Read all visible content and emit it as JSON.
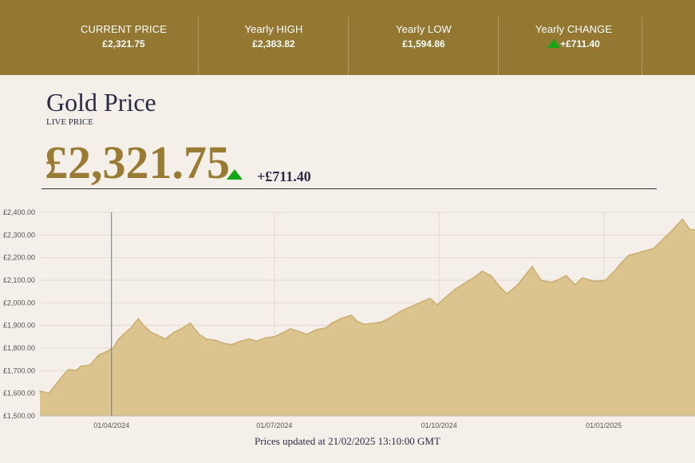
{
  "header": {
    "stats": [
      {
        "label": "CURRENT PRICE",
        "value": "£2,321.75"
      },
      {
        "label": "Yearly HIGH",
        "value": "£2,383.82"
      },
      {
        "label": "Yearly LOW",
        "value": "£1,594.86"
      },
      {
        "label": "Yearly CHANGE",
        "value": "+£711.40"
      }
    ]
  },
  "main": {
    "title": "Gold Price",
    "subtitle": "LIVE PRICE",
    "price": "£2,321.75",
    "change": "+£711.40",
    "updated": "Prices updated at 21/02/2025 13:10:00 GMT"
  },
  "colors": {
    "header_bg": "#947731",
    "price": "#9a7b33",
    "area_fill": "#dcc48f",
    "area_stroke": "#c9ad6e",
    "up": "#12a812"
  },
  "chart_data": {
    "type": "area",
    "title": "",
    "xlabel": "",
    "ylabel": "",
    "ylim": [
      1500,
      2400
    ],
    "yticks": [
      1500,
      1600,
      1700,
      1800,
      1900,
      2000,
      2100,
      2200,
      2300,
      2400
    ],
    "ytick_labels": [
      "£1,500.00",
      "£1,600.00",
      "£1,700.00",
      "£1,800.00",
      "£1,900.00",
      "£2,000.00",
      "£2,100.00",
      "£2,200.00",
      "£2,300.00",
      "£2,400.00"
    ],
    "xlim": [
      "2024-02-21",
      "2025-02-21"
    ],
    "xticks": [
      "2024-04-01",
      "2024-07-01",
      "2024-10-01",
      "2025-01-01"
    ],
    "xtick_labels": [
      "01/04/2024",
      "01/07/2024",
      "01/10/2024",
      "01/01/2025"
    ],
    "grid": true,
    "series": [
      {
        "x": [
          "2024-02-21",
          "2024-02-26",
          "2024-03-01",
          "2024-03-05",
          "2024-03-08",
          "2024-03-12",
          "2024-03-15",
          "2024-03-20",
          "2024-03-25",
          "2024-03-28",
          "2024-04-02",
          "2024-04-05",
          "2024-04-09",
          "2024-04-12",
          "2024-04-16",
          "2024-04-19",
          "2024-04-23",
          "2024-04-26",
          "2024-05-01",
          "2024-05-06",
          "2024-05-10",
          "2024-05-15",
          "2024-05-20",
          "2024-05-24",
          "2024-05-29",
          "2024-06-03",
          "2024-06-07",
          "2024-06-12",
          "2024-06-17",
          "2024-06-21",
          "2024-06-26",
          "2024-07-01",
          "2024-07-05",
          "2024-07-10",
          "2024-07-16",
          "2024-07-19",
          "2024-07-24",
          "2024-07-30",
          "2024-08-02",
          "2024-08-07",
          "2024-08-13",
          "2024-08-16",
          "2024-08-20",
          "2024-08-26",
          "2024-08-30",
          "2024-09-05",
          "2024-09-10",
          "2024-09-16",
          "2024-09-20",
          "2024-09-26",
          "2024-09-30",
          "2024-10-04",
          "2024-10-10",
          "2024-10-16",
          "2024-10-22",
          "2024-10-25",
          "2024-10-30",
          "2024-11-04",
          "2024-11-08",
          "2024-11-14",
          "2024-11-19",
          "2024-11-22",
          "2024-11-27",
          "2024-12-03",
          "2024-12-06",
          "2024-12-11",
          "2024-12-16",
          "2024-12-20",
          "2024-12-27",
          "2025-01-02",
          "2025-01-07",
          "2025-01-10",
          "2025-01-15",
          "2025-01-20",
          "2025-01-24",
          "2025-01-29",
          "2025-02-03",
          "2025-02-07",
          "2025-02-11",
          "2025-02-14",
          "2025-02-18",
          "2025-02-21"
        ],
        "values": [
          1610,
          1600,
          1640,
          1680,
          1705,
          1700,
          1720,
          1725,
          1770,
          1780,
          1800,
          1840,
          1870,
          1890,
          1930,
          1900,
          1870,
          1860,
          1840,
          1870,
          1885,
          1910,
          1860,
          1840,
          1835,
          1820,
          1815,
          1830,
          1840,
          1830,
          1845,
          1850,
          1865,
          1885,
          1870,
          1860,
          1880,
          1890,
          1910,
          1930,
          1945,
          1920,
          1905,
          1910,
          1915,
          1940,
          1965,
          1985,
          2000,
          2020,
          1990,
          2020,
          2060,
          2090,
          2120,
          2140,
          2120,
          2070,
          2040,
          2080,
          2130,
          2160,
          2100,
          2090,
          2100,
          2120,
          2080,
          2110,
          2095,
          2100,
          2140,
          2170,
          2210,
          2220,
          2230,
          2240,
          2280,
          2310,
          2345,
          2370,
          2325,
          2322
        ]
      }
    ]
  }
}
